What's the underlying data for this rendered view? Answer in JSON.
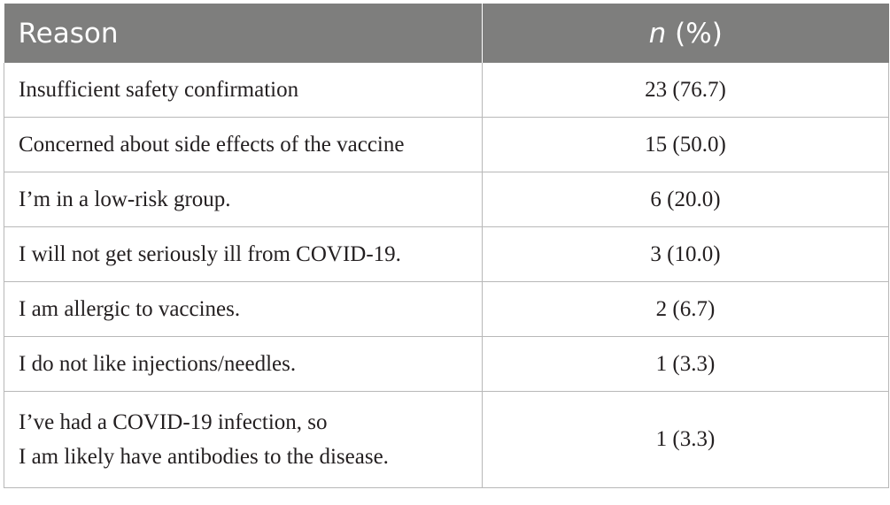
{
  "header": {
    "reason_label": "Reason",
    "n_label_italic": "n",
    "n_label_rest": " (%)"
  },
  "rows": [
    {
      "reason": "Insufficient safety confirmation",
      "value": "23 (76.7)"
    },
    {
      "reason": "Concerned about side effects of the vaccine",
      "value": "15 (50.0)"
    },
    {
      "reason": "I’m in a low-risk group.",
      "value": "6 (20.0)"
    },
    {
      "reason": "I will not get seriously ill from COVID-19.",
      "value": "3 (10.0)"
    },
    {
      "reason": "I am allergic to vaccines.",
      "value": "2 (6.7)"
    },
    {
      "reason": "I do not like injections/needles.",
      "value": "1 (3.3)"
    },
    {
      "reason_lines": [
        "I’ve had a COVID-19 infection, so",
        "I am likely have antibodies to the disease."
      ],
      "value": "1 (3.3)"
    }
  ],
  "colors": {
    "header_bg": "#7e7e7d",
    "header_text": "#ffffff",
    "body_text": "#231f20",
    "border": "#b8b8b8"
  }
}
